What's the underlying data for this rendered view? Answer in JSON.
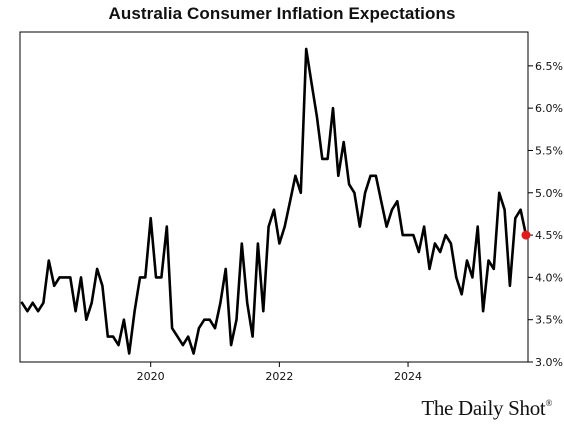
{
  "title": "Australia Consumer Inflation Expectations",
  "brand": "The Daily Shot",
  "brand_mark": "®",
  "colors": {
    "line": "#000000",
    "marker": "#e11b1b",
    "axis": "#000000",
    "text": "#111111"
  },
  "chart_data": {
    "type": "line",
    "title": "Australia Consumer Inflation Expectations",
    "xlabel": "",
    "ylabel": "",
    "x_range": [
      "2018-01",
      "2025-11"
    ],
    "ylim": [
      3.0,
      6.9
    ],
    "y_ticks": [
      {
        "value": 3.0,
        "label": "3.0%"
      },
      {
        "value": 3.5,
        "label": "3.5%"
      },
      {
        "value": 4.0,
        "label": "4.0%"
      },
      {
        "value": 4.5,
        "label": "4.5%"
      },
      {
        "value": 5.0,
        "label": "5.0%"
      },
      {
        "value": 5.5,
        "label": "5.5%"
      },
      {
        "value": 6.0,
        "label": "6.0%"
      },
      {
        "value": 6.5,
        "label": "6.5%"
      }
    ],
    "x_ticks": [
      {
        "value": "2020-01",
        "label": "2020"
      },
      {
        "value": "2022-01",
        "label": "2022"
      },
      {
        "value": "2024-01",
        "label": "2024"
      }
    ],
    "grid": false,
    "legend": "none",
    "y_axis_position": "right",
    "last_point_marker": true,
    "series": [
      {
        "x": [
          "2018-01",
          "2018-02",
          "2018-03",
          "2018-04",
          "2018-05",
          "2018-06",
          "2018-07",
          "2018-08",
          "2018-09",
          "2018-10",
          "2018-11",
          "2018-12",
          "2019-01",
          "2019-02",
          "2019-03",
          "2019-04",
          "2019-05",
          "2019-06",
          "2019-07",
          "2019-08",
          "2019-09",
          "2019-10",
          "2019-11",
          "2019-12",
          "2020-01",
          "2020-02",
          "2020-03",
          "2020-04",
          "2020-05",
          "2020-06",
          "2020-07",
          "2020-08",
          "2020-09",
          "2020-10",
          "2020-11",
          "2020-12",
          "2021-01",
          "2021-02",
          "2021-03",
          "2021-04",
          "2021-05",
          "2021-06",
          "2021-07",
          "2021-08",
          "2021-09",
          "2021-10",
          "2021-11",
          "2021-12",
          "2022-01",
          "2022-02",
          "2022-03",
          "2022-04",
          "2022-05",
          "2022-06",
          "2022-07",
          "2022-08",
          "2022-09",
          "2022-10",
          "2022-11",
          "2022-12",
          "2023-01",
          "2023-02",
          "2023-03",
          "2023-04",
          "2023-05",
          "2023-06",
          "2023-07",
          "2023-08",
          "2023-09",
          "2023-10",
          "2023-11",
          "2023-12",
          "2024-01",
          "2024-02",
          "2024-03",
          "2024-04",
          "2024-05",
          "2024-06",
          "2024-07",
          "2024-08",
          "2024-09",
          "2024-10",
          "2024-11",
          "2024-12",
          "2025-01",
          "2025-02",
          "2025-03",
          "2025-04",
          "2025-05",
          "2025-06",
          "2025-07",
          "2025-08",
          "2025-09",
          "2025-10",
          "2025-11"
        ],
        "values": [
          3.7,
          3.6,
          3.7,
          3.6,
          3.7,
          4.2,
          3.9,
          4.0,
          4.0,
          4.0,
          3.6,
          4.0,
          3.5,
          3.7,
          4.1,
          3.9,
          3.3,
          3.3,
          3.2,
          3.5,
          3.1,
          3.6,
          4.0,
          4.0,
          4.7,
          4.0,
          4.0,
          4.6,
          3.4,
          3.3,
          3.2,
          3.3,
          3.1,
          3.4,
          3.5,
          3.5,
          3.4,
          3.7,
          4.1,
          3.2,
          3.5,
          4.4,
          3.7,
          3.3,
          4.4,
          3.6,
          4.6,
          4.8,
          4.4,
          4.6,
          4.9,
          5.2,
          5.0,
          6.7,
          6.3,
          5.9,
          5.4,
          5.4,
          6.0,
          5.2,
          5.6,
          5.1,
          5.0,
          4.6,
          5.0,
          5.2,
          5.2,
          4.9,
          4.6,
          4.8,
          4.9,
          4.5,
          4.5,
          4.5,
          4.3,
          4.6,
          4.1,
          4.4,
          4.3,
          4.5,
          4.4,
          4.0,
          3.8,
          4.2,
          4.0,
          4.6,
          3.6,
          4.2,
          4.1,
          5.0,
          4.8,
          3.9,
          4.7,
          4.8,
          4.5
        ]
      }
    ]
  }
}
